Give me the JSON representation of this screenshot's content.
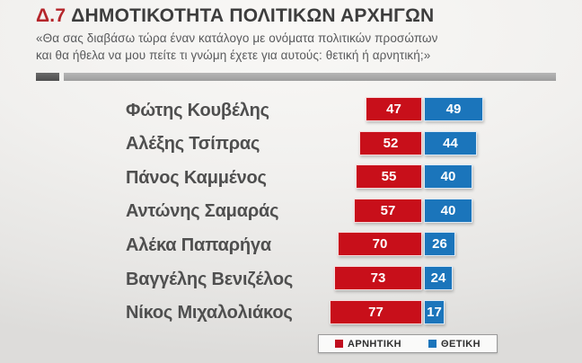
{
  "title": {
    "code": "Δ.7",
    "text": "ΔΗΜΟΤΙΚΟΤΗΤΑ ΠΟΛΙΤΙΚΩΝ ΑΡΧΗΓΩΝ"
  },
  "subtitle": {
    "line1": "«Θα σας διαβάσω τώρα έναν κατάλογο με ονόματα πολιτικών προσώπων",
    "line2": "και θα ήθελα να μου πείτε τι γνώμη έχετε για αυτούς: θετική ή αρνητική;»"
  },
  "legend": {
    "negative_label": "ΑΡΝΗΤΙΚΗ",
    "positive_label": "ΘΕΤΙΚΗ"
  },
  "colors": {
    "negative": "#c80f1a",
    "positive": "#1b75bb",
    "title_code": "#b5262b",
    "title_text": "#3d3d3d"
  },
  "chart_data": {
    "type": "bar",
    "orientation": "horizontal",
    "title": "Δ.7 ΔΗΜΟΤΙΚΟΤΗΤΑ ΠΟΛΙΤΙΚΩΝ ΑΡΧΗΓΩΝ",
    "categories": [
      "Φώτης Κουβέλης",
      "Αλέξης Τσίπρας",
      "Πάνος Καμμένος",
      "Αντώνης Σαμαράς",
      "Αλέκα Παπαρήγα",
      "Βαγγέλης Βενιζέλος",
      "Νίκος Μιχαλολιάκος"
    ],
    "series": [
      {
        "name": "ΑΡΝΗΤΙΚΗ",
        "color": "#c80f1a",
        "values": [
          47,
          52,
          55,
          57,
          70,
          73,
          77
        ]
      },
      {
        "name": "ΘΕΤΙΚΗ",
        "color": "#1b75bb",
        "values": [
          49,
          44,
          40,
          40,
          26,
          24,
          17
        ]
      }
    ],
    "value_labels": "inside",
    "xlim": [
      0,
      100
    ],
    "grid": false,
    "legend_position": "bottom-right"
  }
}
